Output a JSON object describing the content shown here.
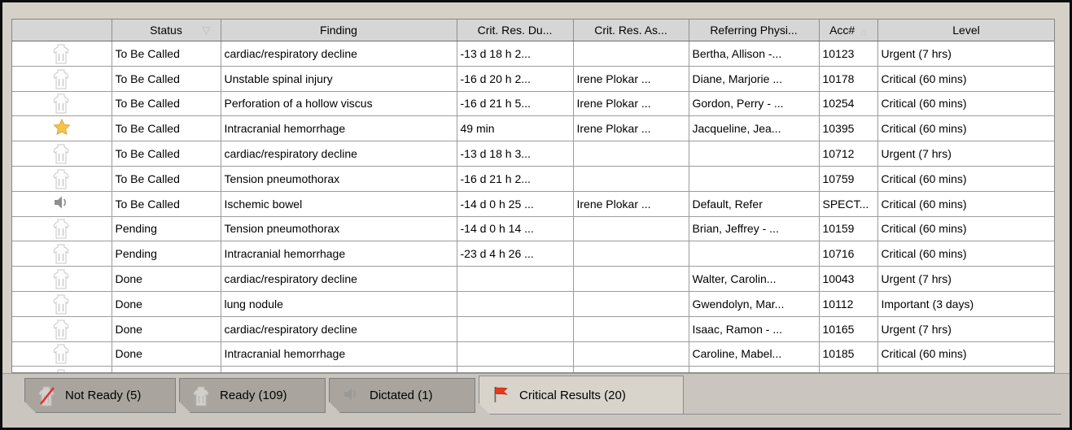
{
  "colors": {
    "overdue_bg": "#00a8aa",
    "flag_red": "#e8391d",
    "star_yellow": "#f3c64a",
    "tab_inactive_bg": "#a9a59e",
    "tab_active_bg": "#d8d4cc"
  },
  "table": {
    "columns": [
      {
        "key": "icon",
        "label": "",
        "sort": ""
      },
      {
        "key": "status",
        "label": "Status",
        "sort": "desc"
      },
      {
        "key": "finding",
        "label": "Finding",
        "sort": ""
      },
      {
        "key": "duration",
        "label": "Crit. Res. Du...",
        "sort": ""
      },
      {
        "key": "assigned",
        "label": "Crit. Res. As...",
        "sort": ""
      },
      {
        "key": "referring",
        "label": "Referring Physi...",
        "sort": ""
      },
      {
        "key": "acc",
        "label": "Acc#",
        "sort": "asc"
      },
      {
        "key": "level",
        "label": "Level",
        "sort": ""
      }
    ],
    "rows": [
      {
        "icon": "ready",
        "status": "To Be Called",
        "finding": "cardiac/respiratory decline",
        "duration": "-13 d 18 h 2...",
        "overdue": true,
        "assigned": "",
        "referring": "Bertha, Allison -...",
        "acc": "10123",
        "level": "Urgent (7 hrs)"
      },
      {
        "icon": "ready",
        "status": "To Be Called",
        "finding": "Unstable spinal injury",
        "duration": "-16 d 20 h 2...",
        "overdue": true,
        "assigned": "Irene Plokar ...",
        "referring": "Diane, Marjorie ...",
        "acc": "10178",
        "level": "Critical (60 mins)"
      },
      {
        "icon": "ready",
        "status": "To Be Called",
        "finding": "Perforation of a hollow viscus",
        "duration": "-16 d 21 h 5...",
        "overdue": true,
        "assigned": "Irene Plokar ...",
        "referring": "Gordon, Perry - ...",
        "acc": "10254",
        "level": "Critical (60 mins)"
      },
      {
        "icon": "star",
        "status": "To Be Called",
        "finding": "Intracranial hemorrhage",
        "duration": "49 min",
        "overdue": false,
        "assigned": "Irene Plokar ...",
        "referring": "Jacqueline, Jea...",
        "acc": "10395",
        "level": "Critical (60 mins)"
      },
      {
        "icon": "ready",
        "status": "To Be Called",
        "finding": "cardiac/respiratory decline",
        "duration": "-13 d 18 h 3...",
        "overdue": true,
        "assigned": "",
        "referring": "",
        "acc": "10712",
        "level": "Urgent (7 hrs)"
      },
      {
        "icon": "ready",
        "status": "To Be Called",
        "finding": "Tension pneumothorax",
        "duration": "-16 d 21 h 2...",
        "overdue": true,
        "assigned": "",
        "referring": "",
        "acc": "10759",
        "level": "Critical (60 mins)"
      },
      {
        "icon": "dictated",
        "status": "To Be Called",
        "finding": "Ischemic bowel",
        "duration": "-14 d 0 h 25 ...",
        "overdue": true,
        "assigned": "Irene Plokar ...",
        "referring": "Default, Refer",
        "acc": "SPECT...",
        "level": "Critical (60 mins)"
      },
      {
        "icon": "ready",
        "status": "Pending",
        "finding": "Tension pneumothorax",
        "duration": "-14 d 0 h 14 ...",
        "overdue": true,
        "assigned": "",
        "referring": "Brian, Jeffrey - ...",
        "acc": "10159",
        "level": "Critical (60 mins)"
      },
      {
        "icon": "ready",
        "status": "Pending",
        "finding": "Intracranial hemorrhage",
        "duration": "-23 d 4 h 26 ...",
        "overdue": true,
        "assigned": "",
        "referring": "",
        "acc": "10716",
        "level": "Critical (60 mins)"
      },
      {
        "icon": "ready",
        "status": "Done",
        "finding": "cardiac/respiratory decline",
        "duration": "",
        "overdue": false,
        "assigned": "",
        "referring": "Walter, Carolin...",
        "acc": "10043",
        "level": "Urgent (7 hrs)"
      },
      {
        "icon": "ready",
        "status": "Done",
        "finding": "lung nodule",
        "duration": "",
        "overdue": false,
        "assigned": "",
        "referring": "Gwendolyn, Mar...",
        "acc": "10112",
        "level": "Important (3 days)"
      },
      {
        "icon": "ready",
        "status": "Done",
        "finding": "cardiac/respiratory decline",
        "duration": "",
        "overdue": false,
        "assigned": "",
        "referring": "Isaac, Ramon - ...",
        "acc": "10165",
        "level": "Urgent (7 hrs)"
      },
      {
        "icon": "ready",
        "status": "Done",
        "finding": "Intracranial hemorrhage",
        "duration": "",
        "overdue": false,
        "assigned": "",
        "referring": "Caroline, Mabel...",
        "acc": "10185",
        "level": "Critical (60 mins)"
      },
      {
        "icon": "ready",
        "status": "",
        "finding": "",
        "duration": "",
        "overdue": false,
        "assigned": "",
        "referring": "",
        "acc": "",
        "level": "",
        "partial": true
      }
    ]
  },
  "tabs": [
    {
      "id": "not_ready",
      "label": "Not Ready (5)",
      "icon": "not-ready",
      "active": false
    },
    {
      "id": "ready",
      "label": "Ready (109)",
      "icon": "ready",
      "active": false
    },
    {
      "id": "dictated",
      "label": "Dictated (1)",
      "icon": "dictated",
      "active": false
    },
    {
      "id": "critical_results",
      "label": "Critical Results (20)",
      "icon": "flag",
      "active": true
    }
  ]
}
